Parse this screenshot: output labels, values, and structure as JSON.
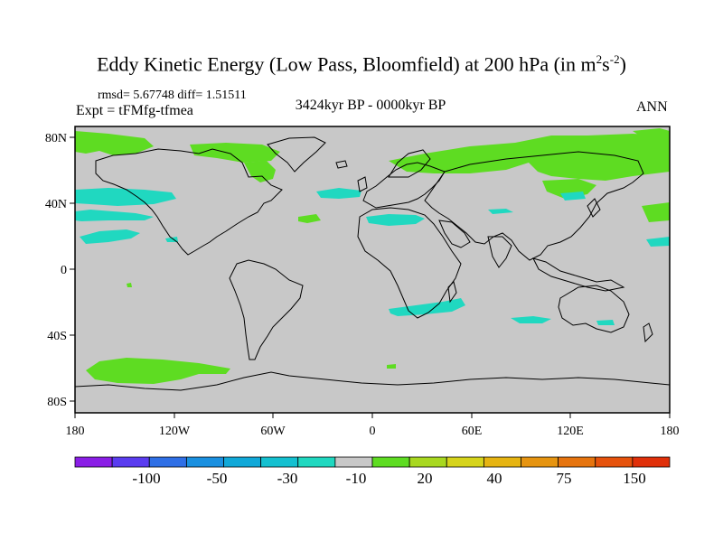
{
  "title": {
    "main": "Eddy Kinetic Energy (Low Pass, Bloomfield) at 200 hPa (in m",
    "sup1": "2",
    "mid": "s",
    "sup2": "-2",
    "end": ")"
  },
  "stats": "rmsd= 5.67748 diff= 1.51511",
  "experiment": "Expt = tFMfg-tfmea",
  "period": "3424kyr BP - 0000kyr BP",
  "season": "ANN",
  "axes": {
    "lon_labels": [
      "180",
      "120W",
      "60W",
      "0",
      "60E",
      "120E",
      "180"
    ],
    "lat_labels": [
      "80N",
      "40N",
      "0",
      "40S",
      "80S"
    ]
  },
  "colorbar": {
    "colors": [
      "#8a1ee6",
      "#5a3cf0",
      "#2f6fe6",
      "#1a90e0",
      "#10a8d8",
      "#14c0d0",
      "#20d8c0",
      "#c8c8c8",
      "#5edc22",
      "#a8d820",
      "#d6d41c",
      "#e6b412",
      "#e69410",
      "#e6740e",
      "#e6520c",
      "#e0300a"
    ],
    "labels": [
      "-100",
      "-50",
      "-30",
      "-10",
      "20",
      "40",
      "75",
      "150"
    ]
  },
  "chart_data": {
    "type": "map",
    "variable": "Eddy kinetic energy difference (m2 s-2)",
    "level": "200 hPa",
    "projection": "cylindrical equidistant",
    "lon_range": [
      -180,
      180
    ],
    "lat_range": [
      -90,
      90
    ],
    "background_value_class": "-10 to 20 (grey)",
    "regions": [
      {
        "name": "arctic-north-america-positive",
        "class": "20 to 40",
        "lon": [
          -180,
          -110
        ],
        "lat": [
          68,
          80
        ]
      },
      {
        "name": "hudson-labrador-positive",
        "class": "20 to 40",
        "lon": [
          -75,
          -55
        ],
        "lat": [
          50,
          62
        ]
      },
      {
        "name": "eurasia-arctic-positive",
        "class": "20 to 40",
        "lon": [
          20,
          180
        ],
        "lat": [
          60,
          78
        ]
      },
      {
        "name": "south-pacific-positive",
        "class": "20 to 40",
        "lon": [
          -175,
          -100
        ],
        "lat": [
          -62,
          -52
        ]
      },
      {
        "name": "north-pacific-negative-40n",
        "class": "-30 to -10",
        "lon": [
          -180,
          -120
        ],
        "lat": [
          38,
          46
        ]
      },
      {
        "name": "north-pacific-negative-20n",
        "class": "-30 to -10",
        "lon": [
          -180,
          -150
        ],
        "lat": [
          15,
          22
        ]
      },
      {
        "name": "north-atlantic-negative",
        "class": "-30 to -10",
        "lon": [
          -40,
          -10
        ],
        "lat": [
          45,
          50
        ]
      },
      {
        "name": "mediterranean-negative",
        "class": "-30 to -10",
        "lon": [
          -5,
          30
        ],
        "lat": [
          28,
          33
        ]
      },
      {
        "name": "southern-africa-negative",
        "class": "-30 to -10",
        "lon": [
          15,
          55
        ],
        "lat": [
          -32,
          -26
        ]
      },
      {
        "name": "australia-negative",
        "class": "-30 to -10",
        "lon": [
          90,
          120
        ],
        "lat": [
          -35,
          -32
        ]
      },
      {
        "name": "central-asia-negative",
        "class": "-30 to -10",
        "lon": [
          80,
          95
        ],
        "lat": [
          32,
          35
        ]
      }
    ]
  }
}
